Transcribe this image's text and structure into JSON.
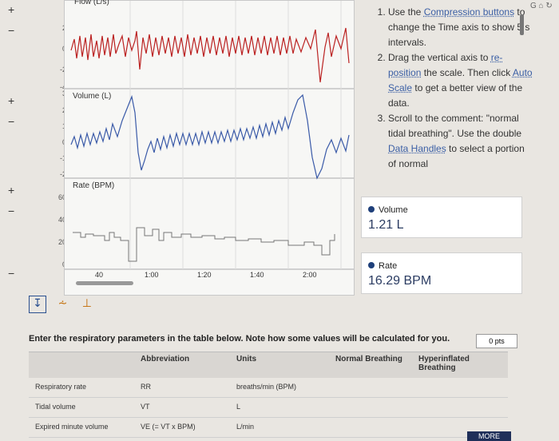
{
  "plot": {
    "flow_label": "Flow (L/s)",
    "volume_label": "Volume (L)",
    "rate_label": "Rate (BPM)",
    "flow_ticks": [
      "2",
      "0",
      "-2",
      "-4"
    ],
    "volume_ticks": [
      "3",
      "2",
      "1",
      "0",
      "-1",
      "-2"
    ],
    "rate_ticks": [
      "60",
      "40",
      "20",
      "0"
    ],
    "time_ticks": [
      "40",
      "1:00",
      "1:20",
      "1:40",
      "2:00"
    ]
  },
  "instructions": {
    "step1_prefix": "Use the ",
    "step1_link": "Compression buttons",
    "step1_suffix": " to change the Time axis to show 5 s intervals.",
    "step2_prefix": "Drag the vertical axis to ",
    "step2_link1": "re-position",
    "step2_mid": " the scale. Then click ",
    "step2_link2": "Auto Scale",
    "step2_suffix": " to get a better view of the data.",
    "step3_prefix": "Scroll to the comment: \"normal tidal breathing\". Use the double ",
    "step3_link": "Data Handles",
    "step3_suffix": " to select a portion of normal"
  },
  "readouts": {
    "volume": {
      "label": "Volume",
      "value": "1.21 L"
    },
    "rate": {
      "label": "Rate",
      "value": "16.29 BPM"
    }
  },
  "question": {
    "text": "Enter the respiratory parameters in the table below. Note how some values will be calculated for you.",
    "points": "0 pts"
  },
  "table": {
    "headers": [
      "Abbreviation",
      "Units",
      "Normal Breathing",
      "Hyperinflated Breathing"
    ],
    "rows": [
      {
        "param": "Respiratory rate",
        "abbr": "RR",
        "units": "breaths/min (BPM)"
      },
      {
        "param": "Tidal volume",
        "abbr": "VT",
        "units": "L"
      },
      {
        "param": "Expired minute volume",
        "abbr": "VE (= VT x BPM)",
        "units": "L/min"
      }
    ]
  },
  "more_label": "MORE"
}
